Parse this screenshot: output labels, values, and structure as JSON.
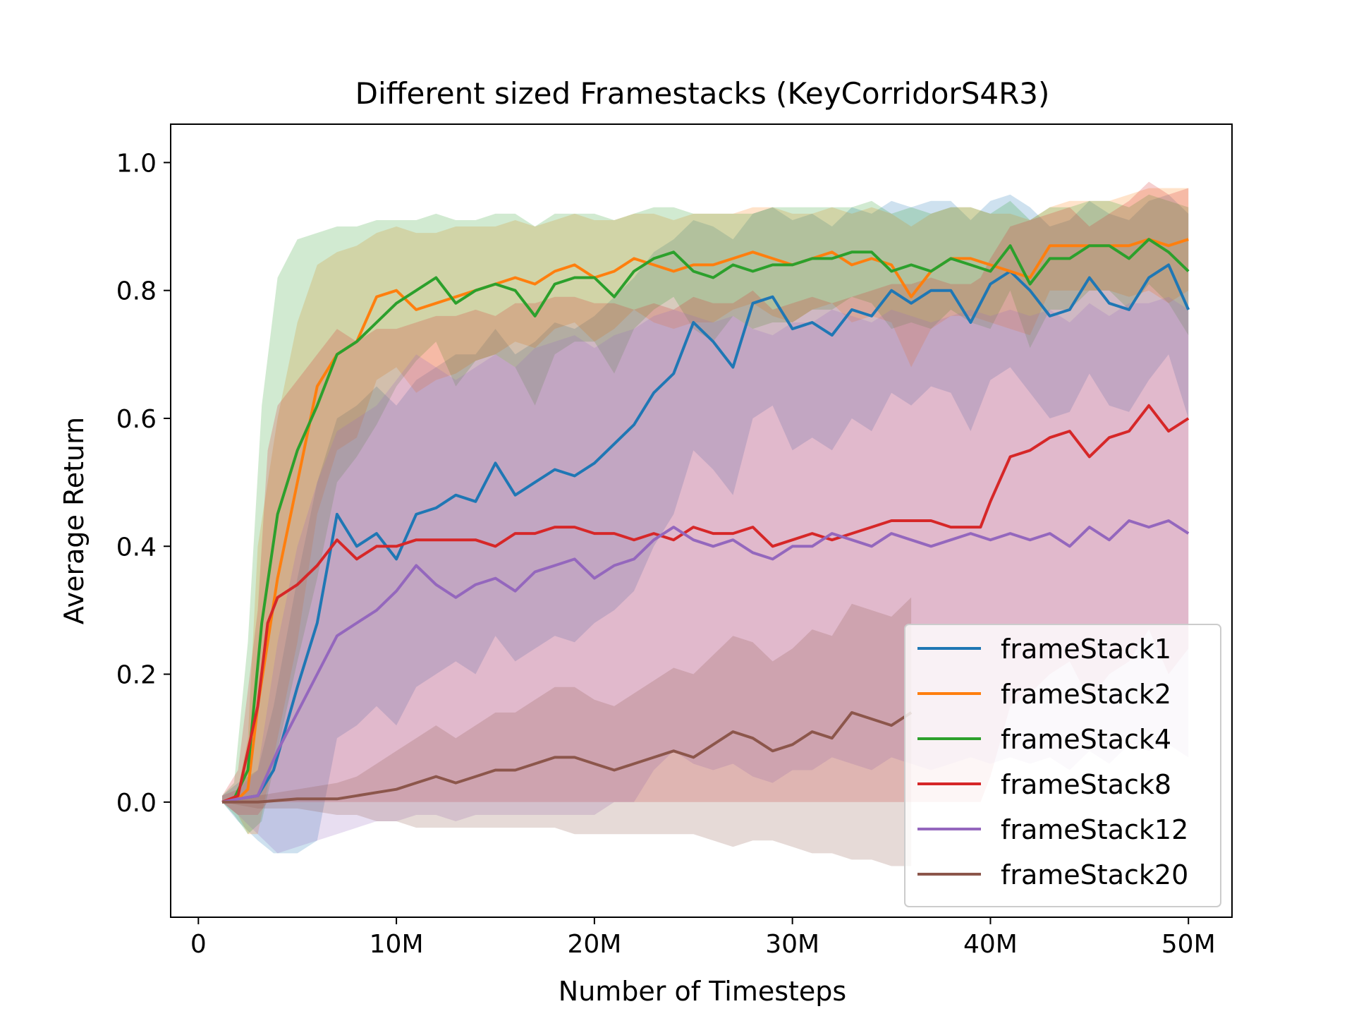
{
  "chart_data": {
    "type": "line",
    "title": "Different sized Framestacks (KeyCorridorS4R3)",
    "xlabel": "Number of Timesteps",
    "ylabel": "Average Return",
    "xlim": [
      -1.4,
      52.2
    ],
    "ylim": [
      -0.18,
      1.06
    ],
    "x_ticks": [
      {
        "value": 0,
        "label": "0"
      },
      {
        "value": 10,
        "label": "10M"
      },
      {
        "value": 20,
        "label": "20M"
      },
      {
        "value": 30,
        "label": "30M"
      },
      {
        "value": 40,
        "label": "40M"
      },
      {
        "value": 50,
        "label": "50M"
      }
    ],
    "y_ticks": [
      {
        "value": 0.0,
        "label": "0.0"
      },
      {
        "value": 0.2,
        "label": "0.2"
      },
      {
        "value": 0.4,
        "label": "0.4"
      },
      {
        "value": 0.6,
        "label": "0.6"
      },
      {
        "value": 0.8,
        "label": "0.8"
      },
      {
        "value": 1.0,
        "label": "1.0"
      }
    ],
    "x_unit_note": "x values in millions of timesteps",
    "grid": false,
    "legend_position": "lower-right",
    "band_opacity": 0.22,
    "series": [
      {
        "name": "frameStack1",
        "color": "#1f77b4",
        "x": [
          1.2,
          2,
          3,
          3.8,
          5,
          6,
          7,
          8,
          9,
          10,
          11,
          12,
          13,
          14,
          15,
          16,
          17,
          18,
          19,
          20,
          21,
          22,
          23,
          24,
          25,
          26,
          27,
          28,
          29,
          30,
          31,
          32,
          33,
          34,
          35,
          36,
          37,
          38,
          39,
          40,
          41,
          42,
          43,
          44,
          45,
          46,
          47,
          48,
          49,
          50
        ],
        "y": [
          0,
          0.005,
          0.01,
          0.05,
          0.18,
          0.28,
          0.45,
          0.4,
          0.42,
          0.38,
          0.45,
          0.46,
          0.48,
          0.47,
          0.53,
          0.48,
          0.5,
          0.52,
          0.51,
          0.53,
          0.56,
          0.59,
          0.64,
          0.67,
          0.75,
          0.72,
          0.68,
          0.78,
          0.79,
          0.74,
          0.75,
          0.73,
          0.77,
          0.76,
          0.8,
          0.78,
          0.8,
          0.8,
          0.75,
          0.81,
          0.83,
          0.8,
          0.76,
          0.77,
          0.82,
          0.78,
          0.77,
          0.82,
          0.84,
          0.77
        ],
        "upper": [
          0.01,
          0.03,
          0.05,
          0.15,
          0.35,
          0.5,
          0.6,
          0.62,
          0.65,
          0.62,
          0.66,
          0.68,
          0.7,
          0.7,
          0.74,
          0.7,
          0.72,
          0.75,
          0.74,
          0.76,
          0.79,
          0.82,
          0.86,
          0.88,
          0.91,
          0.9,
          0.88,
          0.92,
          0.93,
          0.91,
          0.92,
          0.9,
          0.93,
          0.92,
          0.94,
          0.93,
          0.94,
          0.94,
          0.91,
          0.94,
          0.95,
          0.93,
          0.9,
          0.91,
          0.94,
          0.92,
          0.91,
          0.94,
          0.95,
          0.92
        ],
        "lower": [
          0,
          -0.03,
          -0.06,
          -0.08,
          -0.08,
          -0.06,
          0.1,
          0.12,
          0.15,
          0.12,
          0.18,
          0.2,
          0.22,
          0.2,
          0.26,
          0.22,
          0.24,
          0.26,
          0.25,
          0.28,
          0.3,
          0.33,
          0.4,
          0.45,
          0.55,
          0.52,
          0.48,
          0.6,
          0.62,
          0.55,
          0.57,
          0.55,
          0.6,
          0.58,
          0.64,
          0.62,
          0.65,
          0.64,
          0.58,
          0.66,
          0.68,
          0.64,
          0.6,
          0.61,
          0.67,
          0.62,
          0.61,
          0.66,
          0.7,
          0.6
        ]
      },
      {
        "name": "frameStack2",
        "color": "#ff7f0e",
        "x": [
          1.2,
          2,
          2.5,
          3,
          4,
          5,
          6,
          7,
          8,
          9,
          10,
          11,
          12,
          13,
          14,
          15,
          16,
          17,
          18,
          19,
          20,
          21,
          22,
          23,
          24,
          25,
          26,
          27,
          28,
          29,
          30,
          31,
          32,
          33,
          34,
          35,
          36,
          37,
          38,
          39,
          40,
          41,
          42,
          43,
          44,
          45,
          46,
          47,
          48,
          49,
          50
        ],
        "y": [
          0,
          0.005,
          0.02,
          0.15,
          0.35,
          0.5,
          0.65,
          0.7,
          0.72,
          0.79,
          0.8,
          0.77,
          0.78,
          0.79,
          0.8,
          0.81,
          0.82,
          0.81,
          0.83,
          0.84,
          0.82,
          0.83,
          0.85,
          0.84,
          0.83,
          0.84,
          0.84,
          0.85,
          0.86,
          0.85,
          0.84,
          0.85,
          0.86,
          0.84,
          0.85,
          0.84,
          0.79,
          0.83,
          0.85,
          0.85,
          0.84,
          0.83,
          0.82,
          0.87,
          0.87,
          0.87,
          0.87,
          0.87,
          0.88,
          0.87,
          0.88
        ],
        "upper": [
          0.01,
          0.02,
          0.1,
          0.4,
          0.6,
          0.75,
          0.84,
          0.86,
          0.87,
          0.89,
          0.9,
          0.89,
          0.89,
          0.9,
          0.9,
          0.9,
          0.91,
          0.9,
          0.91,
          0.92,
          0.91,
          0.91,
          0.92,
          0.92,
          0.91,
          0.92,
          0.92,
          0.92,
          0.93,
          0.93,
          0.92,
          0.92,
          0.93,
          0.92,
          0.93,
          0.92,
          0.9,
          0.92,
          0.93,
          0.93,
          0.92,
          0.92,
          0.91,
          0.93,
          0.94,
          0.94,
          0.94,
          0.95,
          0.96,
          0.96,
          0.96
        ],
        "lower": [
          0,
          -0.02,
          -0.05,
          -0.05,
          0.1,
          0.25,
          0.45,
          0.55,
          0.57,
          0.66,
          0.68,
          0.64,
          0.66,
          0.67,
          0.69,
          0.7,
          0.72,
          0.71,
          0.74,
          0.75,
          0.72,
          0.74,
          0.77,
          0.75,
          0.74,
          0.75,
          0.75,
          0.77,
          0.78,
          0.76,
          0.75,
          0.77,
          0.78,
          0.75,
          0.76,
          0.75,
          0.68,
          0.74,
          0.76,
          0.76,
          0.75,
          0.74,
          0.73,
          0.8,
          0.8,
          0.8,
          0.8,
          0.79,
          0.8,
          0.78,
          0.8
        ]
      },
      {
        "name": "frameStack4",
        "color": "#2ca02c",
        "x": [
          1.2,
          1.8,
          2.5,
          3.2,
          4,
          5,
          6,
          7,
          8,
          9,
          10,
          11,
          12,
          13,
          14,
          15,
          16,
          17,
          18,
          19,
          20,
          21,
          22,
          23,
          24,
          25,
          26,
          27,
          28,
          29,
          30,
          31,
          32,
          33,
          34,
          35,
          36,
          37,
          38,
          39,
          40,
          41,
          42,
          43,
          44,
          45,
          46,
          47,
          48,
          49,
          50
        ],
        "y": [
          0,
          0.005,
          0.05,
          0.28,
          0.45,
          0.55,
          0.62,
          0.7,
          0.72,
          0.75,
          0.78,
          0.8,
          0.82,
          0.78,
          0.8,
          0.81,
          0.8,
          0.76,
          0.81,
          0.82,
          0.82,
          0.79,
          0.83,
          0.85,
          0.86,
          0.83,
          0.82,
          0.84,
          0.83,
          0.84,
          0.84,
          0.85,
          0.85,
          0.86,
          0.86,
          0.83,
          0.84,
          0.83,
          0.85,
          0.84,
          0.83,
          0.87,
          0.81,
          0.85,
          0.85,
          0.87,
          0.87,
          0.85,
          0.88,
          0.86,
          0.83
        ],
        "upper": [
          0.01,
          0.03,
          0.25,
          0.62,
          0.82,
          0.88,
          0.89,
          0.9,
          0.9,
          0.91,
          0.91,
          0.91,
          0.92,
          0.91,
          0.91,
          0.92,
          0.92,
          0.9,
          0.92,
          0.92,
          0.92,
          0.91,
          0.92,
          0.93,
          0.93,
          0.92,
          0.92,
          0.92,
          0.92,
          0.93,
          0.93,
          0.93,
          0.93,
          0.93,
          0.94,
          0.92,
          0.93,
          0.92,
          0.93,
          0.93,
          0.92,
          0.94,
          0.91,
          0.93,
          0.93,
          0.94,
          0.94,
          0.93,
          0.95,
          0.94,
          0.93
        ],
        "lower": [
          0,
          -0.02,
          -0.05,
          -0.03,
          0.08,
          0.22,
          0.35,
          0.5,
          0.54,
          0.59,
          0.65,
          0.69,
          0.72,
          0.65,
          0.69,
          0.7,
          0.68,
          0.62,
          0.7,
          0.72,
          0.72,
          0.67,
          0.74,
          0.77,
          0.79,
          0.74,
          0.72,
          0.76,
          0.74,
          0.75,
          0.75,
          0.77,
          0.77,
          0.79,
          0.78,
          0.74,
          0.75,
          0.74,
          0.77,
          0.75,
          0.74,
          0.8,
          0.71,
          0.77,
          0.77,
          0.8,
          0.8,
          0.77,
          0.81,
          0.78,
          0.73
        ]
      },
      {
        "name": "frameStack8",
        "color": "#d62728",
        "x": [
          1.2,
          2,
          3,
          3.5,
          4,
          5,
          6,
          7,
          8,
          9,
          10,
          11,
          12,
          13,
          14,
          15,
          16,
          17,
          18,
          19,
          20,
          21,
          22,
          23,
          24,
          25,
          26,
          27,
          28,
          29,
          30,
          31,
          32,
          33,
          34,
          35,
          36,
          37,
          38,
          39,
          39.5,
          40,
          41,
          42,
          43,
          44,
          45,
          46,
          47,
          48,
          49,
          50
        ],
        "y": [
          0,
          0.01,
          0.15,
          0.28,
          0.32,
          0.34,
          0.37,
          0.41,
          0.38,
          0.4,
          0.4,
          0.41,
          0.41,
          0.41,
          0.41,
          0.4,
          0.42,
          0.42,
          0.43,
          0.43,
          0.42,
          0.42,
          0.41,
          0.42,
          0.41,
          0.43,
          0.42,
          0.42,
          0.43,
          0.4,
          0.41,
          0.42,
          0.41,
          0.42,
          0.43,
          0.44,
          0.44,
          0.44,
          0.43,
          0.43,
          0.43,
          0.47,
          0.54,
          0.55,
          0.57,
          0.58,
          0.54,
          0.57,
          0.58,
          0.62,
          0.58,
          0.6
        ],
        "upper": [
          0.01,
          0.05,
          0.3,
          0.55,
          0.62,
          0.66,
          0.7,
          0.74,
          0.72,
          0.74,
          0.74,
          0.75,
          0.76,
          0.76,
          0.77,
          0.76,
          0.78,
          0.78,
          0.79,
          0.79,
          0.78,
          0.78,
          0.77,
          0.78,
          0.77,
          0.79,
          0.78,
          0.78,
          0.8,
          0.77,
          0.78,
          0.79,
          0.78,
          0.79,
          0.8,
          0.81,
          0.81,
          0.82,
          0.81,
          0.81,
          0.82,
          0.85,
          0.9,
          0.91,
          0.92,
          0.93,
          0.9,
          0.92,
          0.94,
          0.97,
          0.95,
          0.96
        ],
        "lower": [
          0,
          -0.02,
          -0.02,
          0.0,
          0.0,
          0.0,
          0.0,
          0.0,
          0.0,
          0.0,
          0.0,
          0.0,
          0.0,
          0.0,
          0.0,
          0.0,
          0.0,
          0.0,
          0.0,
          0.0,
          0.0,
          0.0,
          0.0,
          0.0,
          0.0,
          0.0,
          0.0,
          0.0,
          0.0,
          0.0,
          0.0,
          0.0,
          0.0,
          0.0,
          0.0,
          0.0,
          0.0,
          0.0,
          0.0,
          0.0,
          0.0,
          0.04,
          0.15,
          0.17,
          0.2,
          0.22,
          0.16,
          0.2,
          0.22,
          0.27,
          0.2,
          0.24
        ]
      },
      {
        "name": "frameStack12",
        "color": "#9467bd",
        "x": [
          1.2,
          2,
          3,
          4,
          5,
          6,
          7,
          8,
          9,
          10,
          11,
          12,
          13,
          14,
          15,
          16,
          17,
          18,
          19,
          20,
          21,
          22,
          23,
          24,
          25,
          26,
          27,
          28,
          29,
          30,
          31,
          32,
          33,
          34,
          35,
          36,
          37,
          38,
          39,
          40,
          41,
          42,
          43,
          44,
          45,
          46,
          47,
          48,
          49,
          50
        ],
        "y": [
          0,
          0.005,
          0.01,
          0.08,
          0.14,
          0.2,
          0.26,
          0.28,
          0.3,
          0.33,
          0.37,
          0.34,
          0.32,
          0.34,
          0.35,
          0.33,
          0.36,
          0.37,
          0.38,
          0.35,
          0.37,
          0.38,
          0.41,
          0.43,
          0.41,
          0.4,
          0.41,
          0.39,
          0.38,
          0.4,
          0.4,
          0.42,
          0.41,
          0.4,
          0.42,
          0.41,
          0.4,
          0.41,
          0.42,
          0.41,
          0.42,
          0.41,
          0.42,
          0.4,
          0.43,
          0.41,
          0.44,
          0.43,
          0.44,
          0.42
        ],
        "upper": [
          0.01,
          0.02,
          0.05,
          0.25,
          0.4,
          0.5,
          0.58,
          0.6,
          0.62,
          0.66,
          0.7,
          0.68,
          0.66,
          0.68,
          0.7,
          0.68,
          0.71,
          0.72,
          0.73,
          0.71,
          0.73,
          0.74,
          0.76,
          0.77,
          0.76,
          0.75,
          0.76,
          0.74,
          0.73,
          0.75,
          0.75,
          0.77,
          0.76,
          0.75,
          0.77,
          0.76,
          0.75,
          0.76,
          0.77,
          0.76,
          0.77,
          0.76,
          0.77,
          0.75,
          0.78,
          0.76,
          0.78,
          0.78,
          0.79,
          0.77
        ],
        "lower": [
          0,
          -0.02,
          -0.05,
          -0.08,
          -0.07,
          -0.06,
          -0.05,
          -0.04,
          -0.03,
          -0.03,
          -0.02,
          -0.02,
          -0.03,
          -0.02,
          -0.02,
          -0.02,
          -0.02,
          -0.02,
          -0.02,
          -0.02,
          0.0,
          0.0,
          0.05,
          0.08,
          0.06,
          0.05,
          0.06,
          0.04,
          0.03,
          0.05,
          0.05,
          0.07,
          0.06,
          0.05,
          0.07,
          0.06,
          0.05,
          0.06,
          0.07,
          0.06,
          0.07,
          0.06,
          0.07,
          0.05,
          0.08,
          0.06,
          0.09,
          0.08,
          0.09,
          0.07
        ]
      },
      {
        "name": "frameStack20",
        "color": "#8c564b",
        "x": [
          1.2,
          3,
          5,
          7,
          8,
          9,
          10,
          11,
          12,
          13,
          14,
          15,
          16,
          17,
          18,
          19,
          20,
          21,
          22,
          23,
          24,
          25,
          26,
          27,
          28,
          29,
          30,
          31,
          32,
          33,
          34,
          35,
          36
        ],
        "y": [
          0,
          0,
          0.005,
          0.005,
          0.01,
          0.015,
          0.02,
          0.03,
          0.04,
          0.03,
          0.04,
          0.05,
          0.05,
          0.06,
          0.07,
          0.07,
          0.06,
          0.05,
          0.06,
          0.07,
          0.08,
          0.07,
          0.09,
          0.11,
          0.1,
          0.08,
          0.09,
          0.11,
          0.1,
          0.14,
          0.13,
          0.12,
          0.14
        ],
        "upper": [
          0,
          0.01,
          0.02,
          0.03,
          0.04,
          0.06,
          0.08,
          0.1,
          0.12,
          0.1,
          0.12,
          0.14,
          0.14,
          0.16,
          0.18,
          0.18,
          0.16,
          0.15,
          0.17,
          0.19,
          0.21,
          0.2,
          0.23,
          0.26,
          0.25,
          0.22,
          0.24,
          0.27,
          0.26,
          0.31,
          0.3,
          0.29,
          0.32
        ],
        "lower": [
          0,
          -0.01,
          -0.01,
          -0.02,
          -0.02,
          -0.03,
          -0.03,
          -0.04,
          -0.04,
          -0.04,
          -0.04,
          -0.04,
          -0.04,
          -0.04,
          -0.04,
          -0.05,
          -0.05,
          -0.05,
          -0.05,
          -0.05,
          -0.05,
          -0.05,
          -0.06,
          -0.07,
          -0.06,
          -0.06,
          -0.07,
          -0.08,
          -0.08,
          -0.09,
          -0.09,
          -0.1,
          -0.1
        ]
      }
    ]
  }
}
